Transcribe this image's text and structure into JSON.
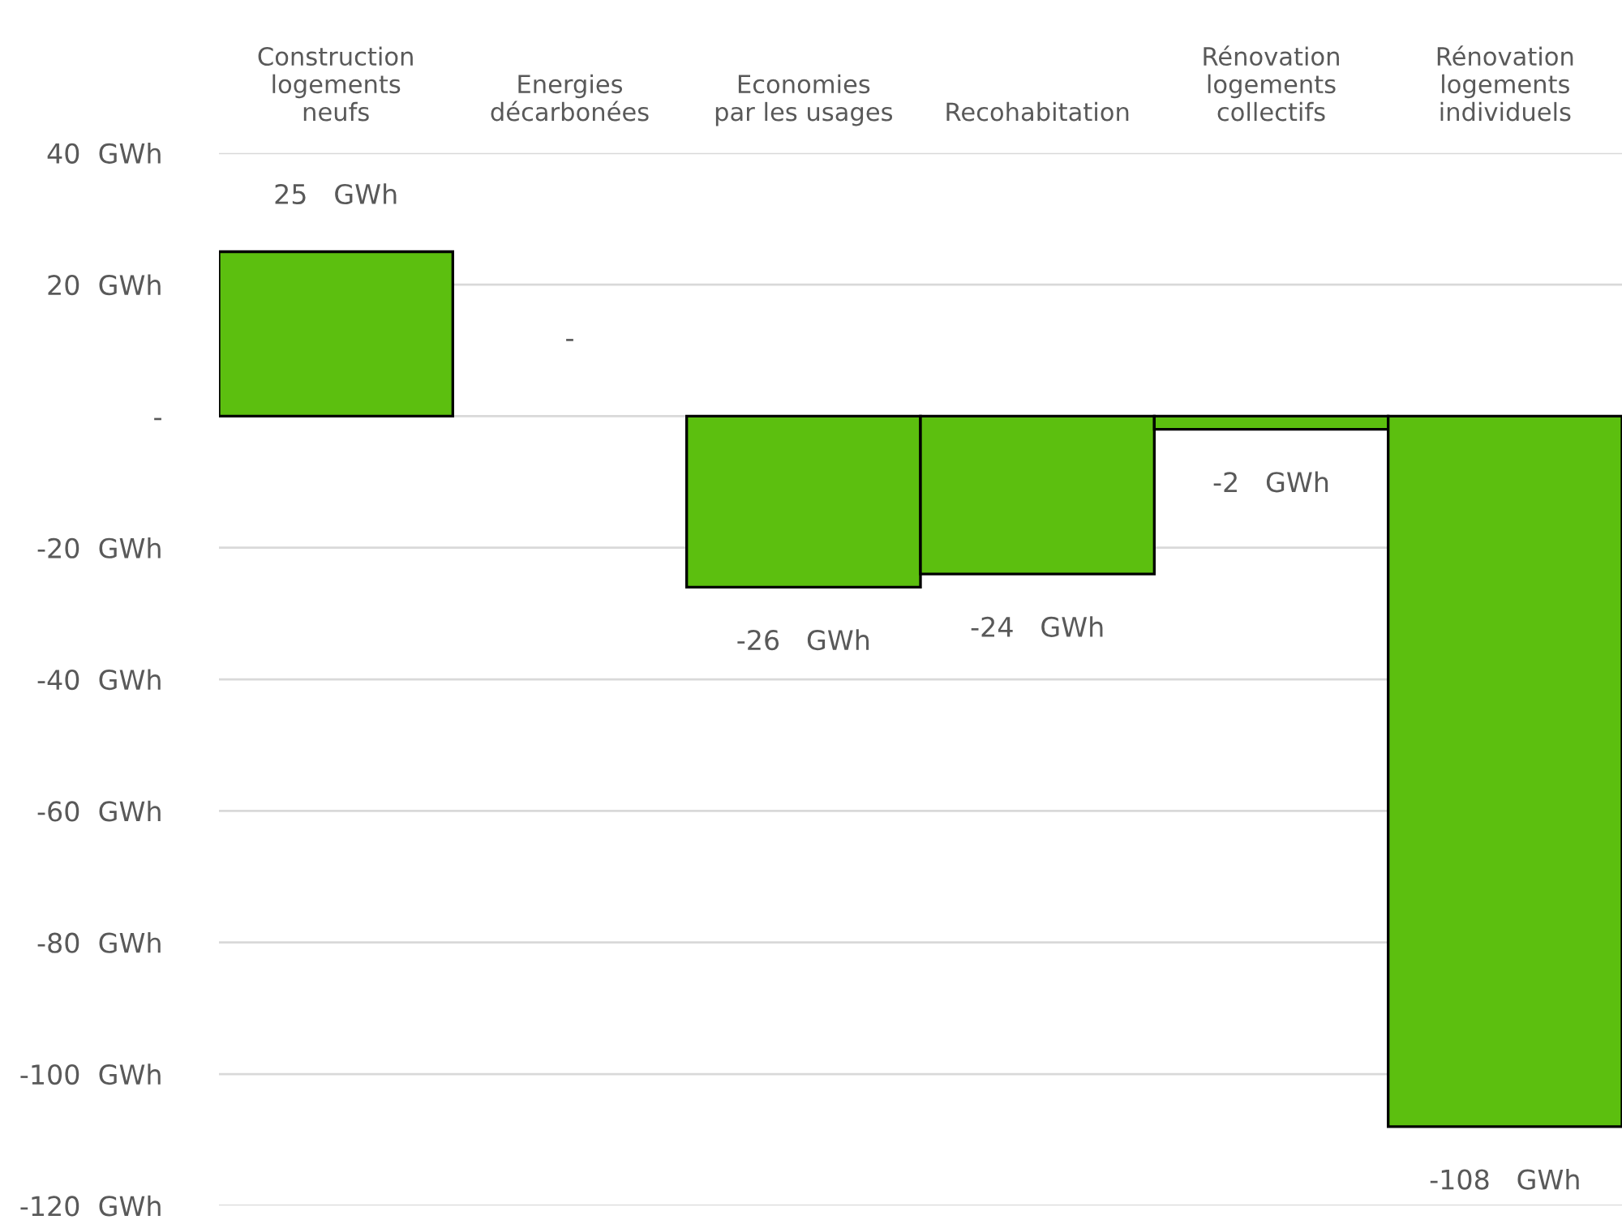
{
  "chart_data": {
    "type": "bar",
    "categories": [
      "Construction\nlogements\nneufs",
      "Energies\ndécarbonées",
      "Economies\npar les usages",
      "Recohabitation",
      "Rénovation\nlogements\ncollectifs",
      "Rénovation\nlogements\nindividuels"
    ],
    "values": [
      25,
      0,
      -26,
      -24,
      -2,
      -108
    ],
    "value_labels": [
      "25   GWh",
      "-",
      "-26   GWh",
      "-24   GWh",
      "-2   GWh",
      "-108   GWh"
    ],
    "color": "#5cbf0f",
    "ylim": [
      -120,
      40
    ],
    "yticks": [
      {
        "value": -120,
        "label": "-120  GWh"
      },
      {
        "value": -100,
        "label": "-100  GWh"
      },
      {
        "value": -80,
        "label": "-80  GWh"
      },
      {
        "value": -60,
        "label": "-60  GWh"
      },
      {
        "value": -40,
        "label": "-40  GWh"
      },
      {
        "value": -20,
        "label": "-20  GWh"
      },
      {
        "value": 0,
        "label": "-"
      },
      {
        "value": 20,
        "label": "20  GWh"
      },
      {
        "value": 40,
        "label": "40  GWh"
      }
    ],
    "grid": "y",
    "legend": false
  }
}
